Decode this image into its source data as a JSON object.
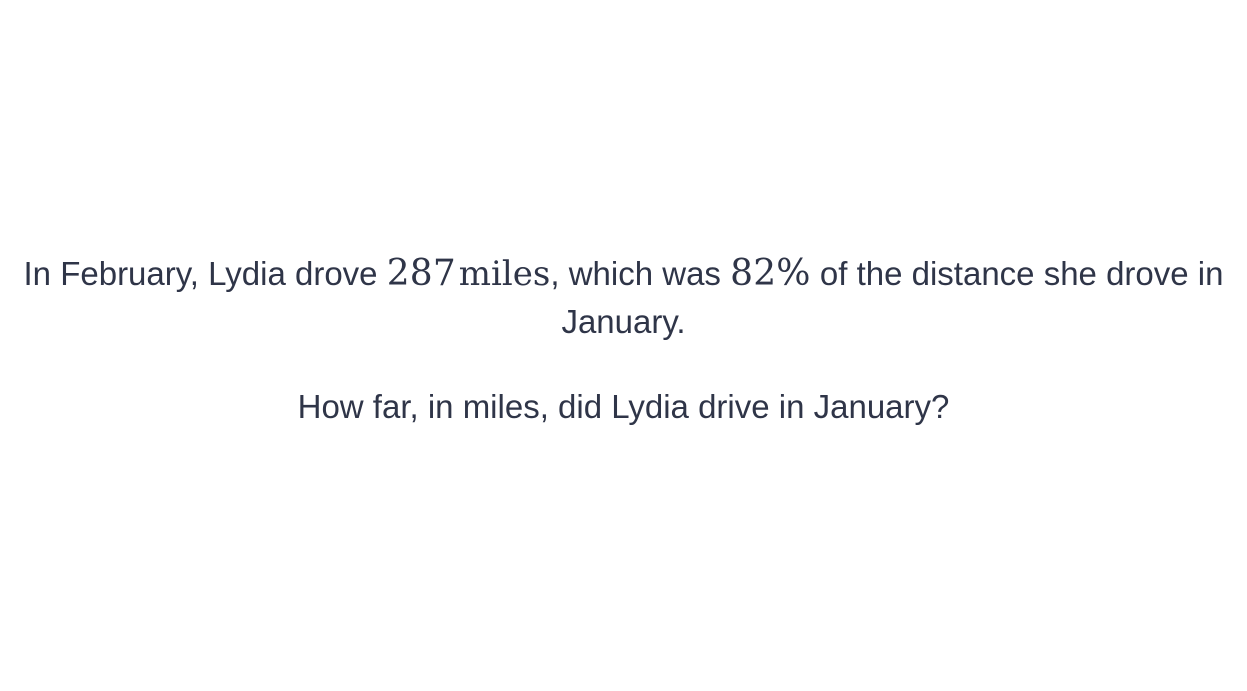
{
  "problem": {
    "statement": {
      "part1": "In February, Lydia drove ",
      "distance_value": "287",
      "distance_unit": "miles",
      "part2": ", which was ",
      "percent": "82%",
      "part3": " of the distance she drove in January."
    },
    "question": "How far, in miles, did Lydia drive in January?"
  },
  "colors": {
    "text": "#2f3548",
    "background": "#ffffff"
  }
}
